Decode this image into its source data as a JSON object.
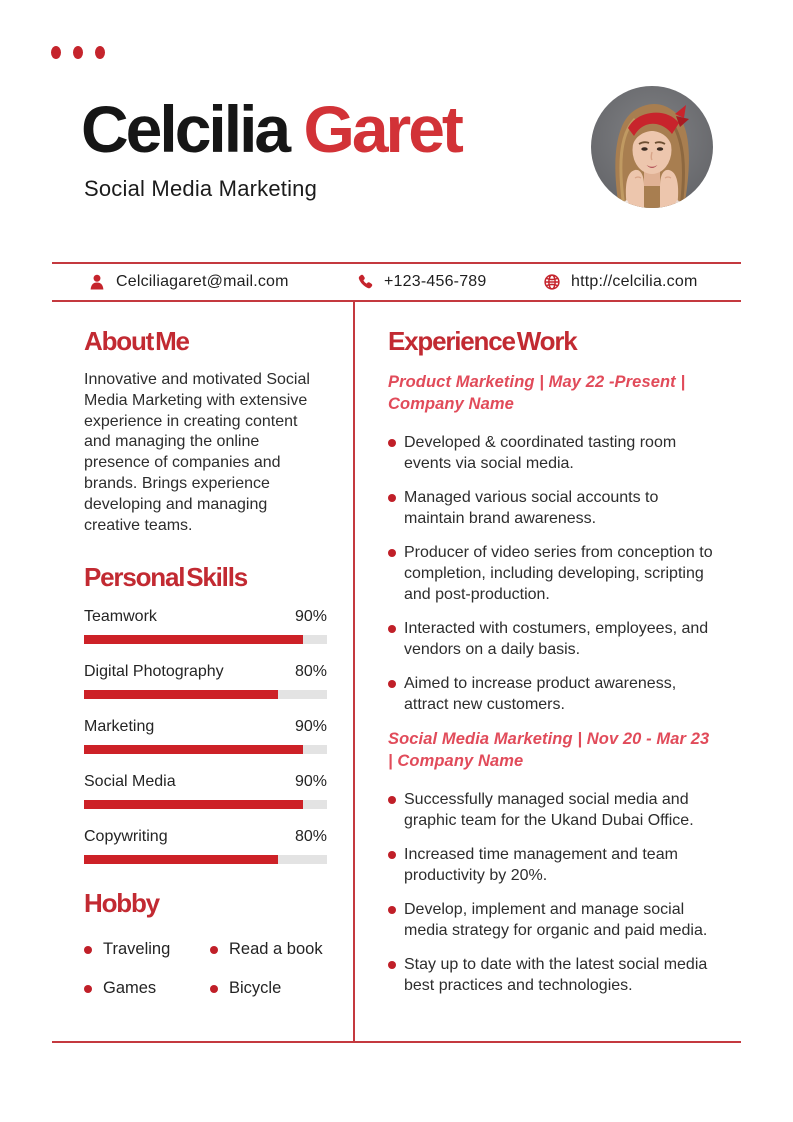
{
  "colors": {
    "accent": "#c5242c",
    "heading_red": "#c22a32",
    "name_red": "#d23237",
    "job_title_red": "#e14b5a",
    "line_red": "#c4393f",
    "bar_fill": "#cd2127",
    "bar_track": "#e3e3e3",
    "text": "#2d2d2d"
  },
  "header": {
    "first_name": "Celcilia",
    "last_name": "Garet",
    "subtitle": "Social Media Marketing"
  },
  "contact": {
    "email": "Celciliagaret@mail.com",
    "phone": "+123-456-789",
    "website": "http://celcilia.com"
  },
  "about": {
    "title": "About Me",
    "text": "Innovative and motivated Social Media Marketing with extensive experience in creating content and managing the online presence of companies and brands. Brings experience developing and managing creative teams."
  },
  "skills": {
    "title": "Personal Skills",
    "items": [
      {
        "label": "Teamwork",
        "percent": "90%",
        "value": 90
      },
      {
        "label": "Digital Photography",
        "percent": "80%",
        "value": 80
      },
      {
        "label": "Marketing",
        "percent": "90%",
        "value": 90
      },
      {
        "label": "Social Media",
        "percent": "90%",
        "value": 90
      },
      {
        "label": "Copywriting",
        "percent": "80%",
        "value": 80
      }
    ]
  },
  "hobby": {
    "title": "Hobby",
    "items": [
      "Traveling",
      "Read a book",
      "Games",
      "Bicycle"
    ]
  },
  "experience": {
    "title": "Experience Work",
    "jobs": [
      {
        "heading": "Product Marketing | May 22 -Present | Company Name",
        "bullets": [
          "Developed & coordinated tasting room events via social media.",
          "Managed various social accounts to maintain brand awareness.",
          "Producer of video series from conception to completion, including developing, scripting and post-production.",
          "Interacted with costumers, employees, and vendors on a daily basis.",
          "Aimed to increase product awareness, attract new customers."
        ]
      },
      {
        "heading": "Social Media Marketing | Nov 20 - Mar 23 | Company Name",
        "bullets": [
          "Successfully managed social media and graphic team for the Ukand Dubai Office.",
          "Increased time management and team productivity by 20%.",
          "Develop, implement and manage social media strategy for organic and paid media.",
          "Stay up to date with the latest social media best practices and technologies."
        ]
      }
    ]
  }
}
